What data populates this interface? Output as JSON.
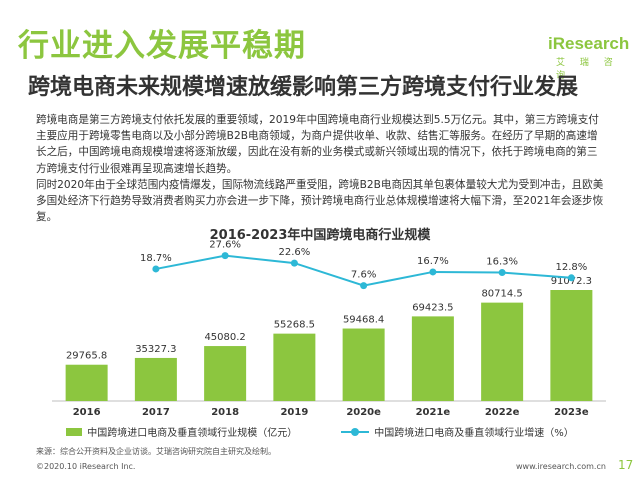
{
  "section_title": "行业进入发展平稳期",
  "logo": {
    "name": "iResearch",
    "subtitle": "艾 瑞 咨 询"
  },
  "headline": "跨境电商未来规模增速放缓影响第三方跨境支付行业发展",
  "body": {
    "paragraph1": "跨境电商是第三方跨境支付依托发展的重要领域，2019年中国跨境电商行业规模达到5.5万亿元。其中，第三方跨境支付主要应用于跨境零售电商以及小部分跨境B2B电商领域，为商户提供收单、收款、结售汇等服务。在经历了早期的高速增长之后，中国跨境电商规模增速将逐渐放缓，因此在没有新的业务模式或新兴领域出现的情况下，依托于跨境电商的第三方跨境支付行业很难再呈现高速增长趋势。",
    "paragraph2": "同时2020年由于全球范围内疫情爆发，国际物流线路严重受阻，跨境B2B电商因其单包裹体量较大尤为受到冲击，且欧美多国处经济下行趋势导致消费者购买力亦会进一步下降，预计跨境电商行业总体规模增速将大幅下滑，至2021年会逐步恢复。"
  },
  "chart_data": {
    "type": "bar",
    "title": "2016-2023年中国跨境电商行业规模",
    "categories": [
      "2016",
      "2017",
      "2018",
      "2019",
      "2020e",
      "2021e",
      "2022e",
      "2023e"
    ],
    "series": [
      {
        "name": "中国跨境进口电商及垂直领域行业规模（亿元）",
        "type": "bar",
        "values": [
          29765.8,
          35327.3,
          45080.2,
          55268.5,
          59468.4,
          69423.5,
          80714.5,
          91072.3
        ],
        "labels": [
          "29765.8",
          "35327.3",
          "45080.2",
          "55268.5",
          "59468.4",
          "69423.5",
          "80714.5",
          "91072.3"
        ]
      },
      {
        "name": "中国跨境进口电商及垂直领域行业增速（%）",
        "type": "line",
        "values": [
          null,
          18.7,
          27.6,
          22.6,
          7.6,
          16.7,
          16.3,
          12.8
        ],
        "labels": [
          "",
          "18.7%",
          "27.6%",
          "22.6%",
          "7.6%",
          "16.7%",
          "16.3%",
          "12.8%"
        ]
      }
    ],
    "ylim": [
      0,
      100000
    ],
    "growth_ylim": [
      0,
      32
    ],
    "grid": false,
    "legend_position": "bottom",
    "colors": {
      "bar": "#8cc63f",
      "line": "#2db8d6"
    }
  },
  "source": "来源：综合公开资料及企业访谈。艾瑞咨询研究院自主研究及绘制。",
  "footer": {
    "copyright": "©2020.10 iResearch Inc.",
    "url": "www.iresearch.com.cn",
    "page": "17"
  },
  "colors": {
    "accent": "#8cc63f",
    "text": "#333333",
    "line": "#2db8d6"
  }
}
